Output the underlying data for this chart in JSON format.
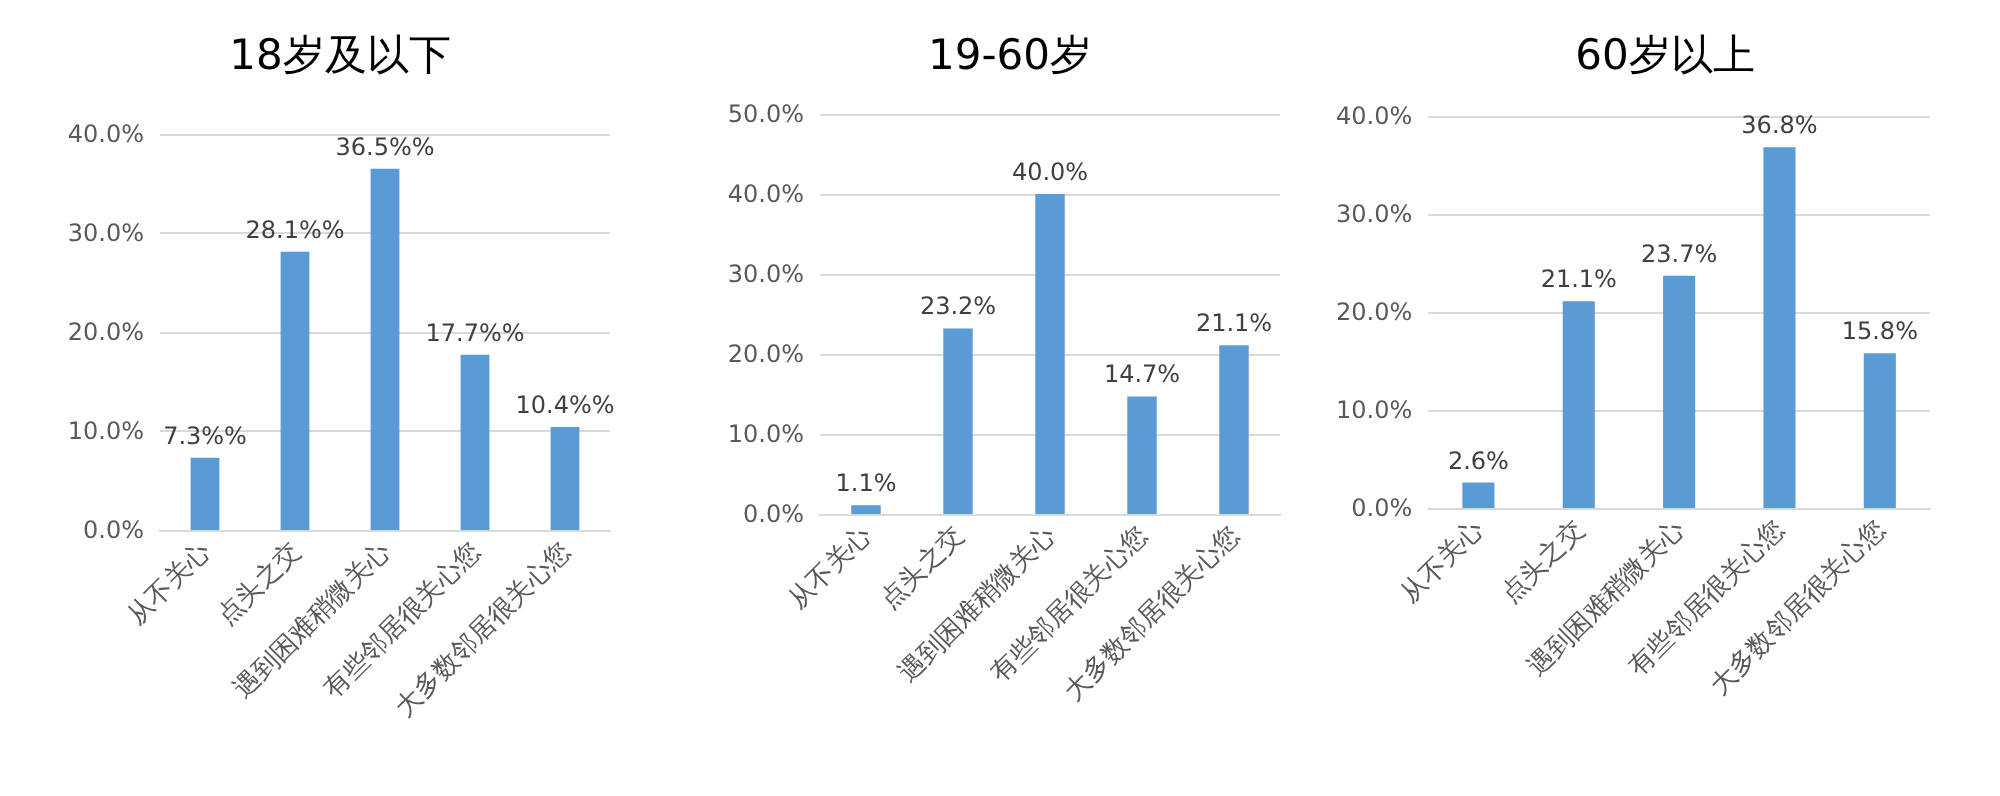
{
  "chart_data": [
    {
      "type": "bar",
      "title": "18岁及以下",
      "categories": [
        "从不关心",
        "点头之交",
        "遇到困难稍微关心",
        "有些邻居很关心您",
        "大多数邻居很关心您"
      ],
      "series": [
        {
          "color": "#5b9bd5",
          "values": [
            7.3,
            28.1,
            36.5,
            17.7,
            10.4
          ],
          "value_labels": [
            "7.3%%",
            "28.1%%",
            "36.5%%",
            "17.7%%",
            "10.4%%"
          ]
        }
      ],
      "ylim": [
        0,
        40
      ],
      "yticks": [
        {
          "value": 0,
          "label": "0.0%"
        },
        {
          "value": 10,
          "label": "10.0%"
        },
        {
          "value": 20,
          "label": "20.0%"
        },
        {
          "value": 30,
          "label": "30.0%"
        },
        {
          "value": 40,
          "label": "40.0%"
        }
      ],
      "grid": "y"
    },
    {
      "type": "bar",
      "title": "19-60岁",
      "categories": [
        "从不关心",
        "点头之交",
        "遇到困难稍微关心",
        "有些邻居很关心您",
        "大多数邻居很关心您"
      ],
      "series": [
        {
          "color": "#5b9bd5",
          "values": [
            1.1,
            23.2,
            40.0,
            14.7,
            21.1
          ],
          "value_labels": [
            "1.1%",
            "23.2%",
            "40.0%",
            "14.7%",
            "21.1%"
          ]
        }
      ],
      "ylim": [
        0,
        50
      ],
      "yticks": [
        {
          "value": 0,
          "label": "0.0%"
        },
        {
          "value": 10,
          "label": "10.0%"
        },
        {
          "value": 20,
          "label": "20.0%"
        },
        {
          "value": 30,
          "label": "30.0%"
        },
        {
          "value": 40,
          "label": "40.0%"
        },
        {
          "value": 50,
          "label": "50.0%"
        }
      ],
      "grid": "y"
    },
    {
      "type": "bar",
      "title": "60岁以上",
      "categories": [
        "从不关心",
        "点头之交",
        "遇到困难稍微关心",
        "有些邻居很关心您",
        "大多数邻居很关心您"
      ],
      "series": [
        {
          "color": "#5b9bd5",
          "values": [
            2.6,
            21.1,
            23.7,
            36.8,
            15.8
          ],
          "value_labels": [
            "2.6%",
            "21.1%",
            "23.7%",
            "36.8%",
            "15.8%"
          ]
        }
      ],
      "ylim": [
        0,
        40
      ],
      "yticks": [
        {
          "value": 0,
          "label": "0.0%"
        },
        {
          "value": 10,
          "label": "10.0%"
        },
        {
          "value": 20,
          "label": "20.0%"
        },
        {
          "value": 30,
          "label": "30.0%"
        },
        {
          "value": 40,
          "label": "40.0%"
        }
      ],
      "grid": "y"
    }
  ]
}
